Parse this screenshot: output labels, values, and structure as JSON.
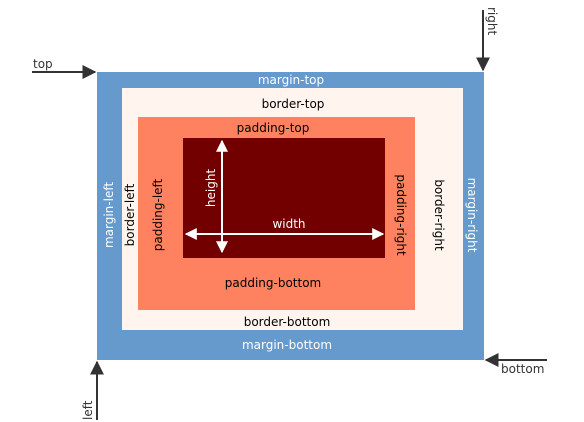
{
  "colors": {
    "margin": "#6699cc",
    "border": "#fff5ee",
    "padding": "#ff8260",
    "content": "#730000",
    "arrow": "#333333",
    "margin_text": "#ffffff",
    "border_text": "#000000",
    "padding_text": "#000000",
    "content_text": "#ffffff"
  },
  "labels": {
    "margin_top": "margin-top",
    "margin_bottom": "margin-bottom",
    "margin_left": "margin-left",
    "margin_right": "margin-right",
    "border_top": "border-top",
    "border_bottom": "border-bottom",
    "border_left": "border-left",
    "border_right": "border-right",
    "padding_top": "padding-top",
    "padding_bottom": "padding-bottom",
    "padding_left": "padding-left",
    "padding_right": "padding-right",
    "width": "width",
    "height": "height",
    "top": "top",
    "right": "right",
    "bottom": "bottom",
    "left": "left"
  }
}
